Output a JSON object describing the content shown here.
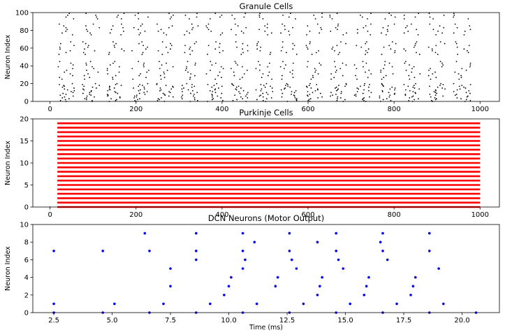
{
  "chart_data": [
    {
      "type": "scatter",
      "title": "Granule Cells",
      "ylabel": "Neuron Index",
      "xlabel": "",
      "xlim": [
        -40,
        1045
      ],
      "ylim": [
        0,
        100
      ],
      "xticks": [
        "0",
        "200",
        "400",
        "600",
        "800",
        "1000"
      ],
      "yticks": [
        "0",
        "20",
        "40",
        "60",
        "80",
        "100"
      ],
      "grid": false,
      "series": [
        {
          "color": "#000000",
          "marker": "dot",
          "pattern": "approximately 10 spikes per neuron, rows spaced ~1.5 apart with gaps at 0-2, 21-23, 47-52, 68-73, 88-92",
          "neuron_rows": [
            0,
            1,
            2,
            3,
            4,
            5,
            6,
            7,
            8,
            9,
            10,
            11,
            12,
            13,
            14,
            15,
            16,
            17,
            18,
            19,
            20,
            25,
            27,
            29,
            31,
            33,
            35,
            37,
            39,
            41,
            43,
            45,
            53,
            55,
            57,
            59,
            61,
            63,
            65,
            67,
            75,
            77,
            79,
            81,
            83,
            85,
            87,
            93,
            95,
            97,
            99
          ],
          "spike_times_approx": [
            20,
            80,
            140,
            200,
            260,
            320,
            380,
            440,
            500,
            560,
            620,
            680,
            740,
            800,
            860,
            920,
            980
          ]
        }
      ]
    },
    {
      "type": "scatter",
      "title": "Purkinje Cells",
      "ylabel": "Neuron Index",
      "xlabel": "",
      "xlim": [
        -40,
        1045
      ],
      "ylim": [
        0,
        20
      ],
      "xticks": [
        "0",
        "200",
        "400",
        "600",
        "800",
        "1000"
      ],
      "yticks": [
        "0",
        "5",
        "10",
        "15",
        "20"
      ],
      "grid": false,
      "series": [
        {
          "color": "#ff0000",
          "marker": "dot",
          "neurons": [
            0,
            1,
            2,
            3,
            4,
            5,
            6,
            7,
            8,
            9,
            10,
            11,
            12,
            13,
            14,
            15,
            16,
            17,
            18,
            19
          ],
          "spike_range_ms": [
            17,
            1000
          ],
          "pattern": "dense continuous firing for every neuron"
        }
      ]
    },
    {
      "type": "scatter",
      "title": "DCN Neurons (Motor Output)",
      "ylabel": "Neuron Index",
      "xlabel": "Time (ms)",
      "xlim": [
        1.6,
        21.6
      ],
      "ylim": [
        0,
        10
      ],
      "xticks": [
        "2.5",
        "5.0",
        "7.5",
        "10.0",
        "12.5",
        "15.0",
        "17.5",
        "20.0"
      ],
      "yticks": [
        "0",
        "2",
        "4",
        "6",
        "8",
        "10"
      ],
      "grid": false,
      "series": [
        {
          "color": "#0000ff",
          "marker": "dot",
          "points": [
            [
              2.5,
              7
            ],
            [
              2.5,
              1
            ],
            [
              2.5,
              0
            ],
            [
              4.6,
              7
            ],
            [
              4.6,
              0
            ],
            [
              5.1,
              1
            ],
            [
              6.4,
              9
            ],
            [
              6.6,
              7
            ],
            [
              6.6,
              0
            ],
            [
              7.2,
              1
            ],
            [
              7.5,
              5
            ],
            [
              7.5,
              3
            ],
            [
              8.6,
              9
            ],
            [
              8.6,
              7
            ],
            [
              8.6,
              6
            ],
            [
              8.6,
              0
            ],
            [
              9.2,
              1
            ],
            [
              9.8,
              2
            ],
            [
              10.0,
              3
            ],
            [
              10.1,
              4
            ],
            [
              10.6,
              9
            ],
            [
              10.6,
              7
            ],
            [
              10.6,
              5
            ],
            [
              10.7,
              6
            ],
            [
              10.6,
              0
            ],
            [
              11.1,
              8
            ],
            [
              11.2,
              1
            ],
            [
              12.0,
              3
            ],
            [
              12.1,
              4
            ],
            [
              12.6,
              9
            ],
            [
              12.6,
              7
            ],
            [
              12.7,
              6
            ],
            [
              12.9,
              5
            ],
            [
              12.6,
              0
            ],
            [
              13.2,
              1
            ],
            [
              13.8,
              2
            ],
            [
              13.9,
              3
            ],
            [
              14.0,
              4
            ],
            [
              13.8,
              8
            ],
            [
              14.6,
              9
            ],
            [
              14.6,
              7
            ],
            [
              14.7,
              6
            ],
            [
              14.9,
              5
            ],
            [
              14.6,
              0
            ],
            [
              15.2,
              1
            ],
            [
              15.8,
              2
            ],
            [
              15.9,
              3
            ],
            [
              16.0,
              4
            ],
            [
              16.6,
              9
            ],
            [
              16.5,
              8
            ],
            [
              16.6,
              7
            ],
            [
              16.8,
              6
            ],
            [
              16.6,
              0
            ],
            [
              17.2,
              1
            ],
            [
              17.8,
              2
            ],
            [
              17.9,
              3
            ],
            [
              18.0,
              4
            ],
            [
              18.6,
              9
            ],
            [
              18.6,
              7
            ],
            [
              18.6,
              0
            ],
            [
              19.0,
              5
            ],
            [
              19.2,
              1
            ],
            [
              20.6,
              0
            ]
          ]
        }
      ]
    }
  ]
}
